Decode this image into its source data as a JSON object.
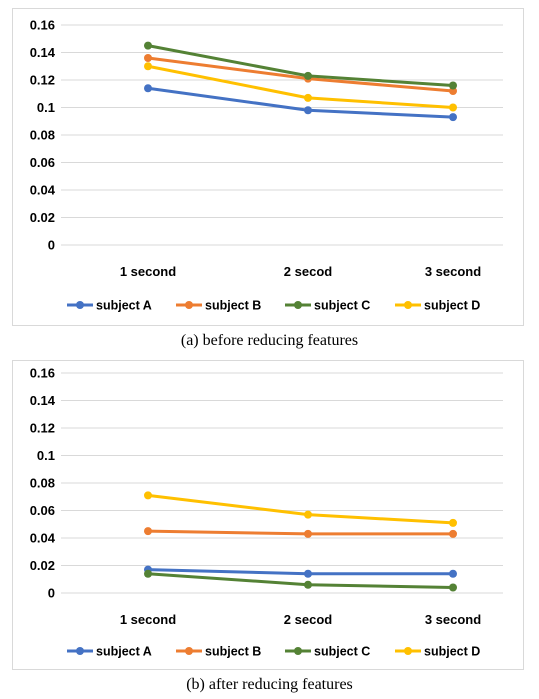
{
  "colors": {
    "subject A": "#4472c4",
    "subject B": "#ed7d31",
    "subject C": "#548235",
    "subject D": "#ffc000",
    "grid": "#d9d9d9"
  },
  "captions": {
    "a": "(a) before reducing features",
    "b": "(b) after reducing features"
  },
  "chart_data": [
    {
      "type": "line",
      "categories": [
        "1 second",
        "2 secod",
        "3 second"
      ],
      "ylim": [
        0,
        0.16
      ],
      "yticks": [
        "0",
        "0.02",
        "0.04",
        "0.06",
        "0.08",
        "0.1",
        "0.12",
        "0.14",
        "0.16"
      ],
      "grid": true,
      "legend": "bottom",
      "series": [
        {
          "name": "subject A",
          "values": [
            0.114,
            0.098,
            0.093
          ]
        },
        {
          "name": "subject B",
          "values": [
            0.136,
            0.121,
            0.112
          ]
        },
        {
          "name": "subject C",
          "values": [
            0.145,
            0.123,
            0.116
          ]
        },
        {
          "name": "subject D",
          "values": [
            0.13,
            0.107,
            0.1
          ]
        }
      ]
    },
    {
      "type": "line",
      "categories": [
        "1 second",
        "2 secod",
        "3 second"
      ],
      "ylim": [
        0,
        0.16
      ],
      "yticks": [
        "0",
        "0.02",
        "0.04",
        "0.06",
        "0.08",
        "0.1",
        "0.12",
        "0.14",
        "0.16"
      ],
      "grid": true,
      "legend": "bottom",
      "series": [
        {
          "name": "subject A",
          "values": [
            0.017,
            0.014,
            0.014
          ]
        },
        {
          "name": "subject B",
          "values": [
            0.045,
            0.043,
            0.043
          ]
        },
        {
          "name": "subject C",
          "values": [
            0.014,
            0.006,
            0.004
          ]
        },
        {
          "name": "subject D",
          "values": [
            0.071,
            0.057,
            0.051
          ]
        }
      ]
    }
  ]
}
